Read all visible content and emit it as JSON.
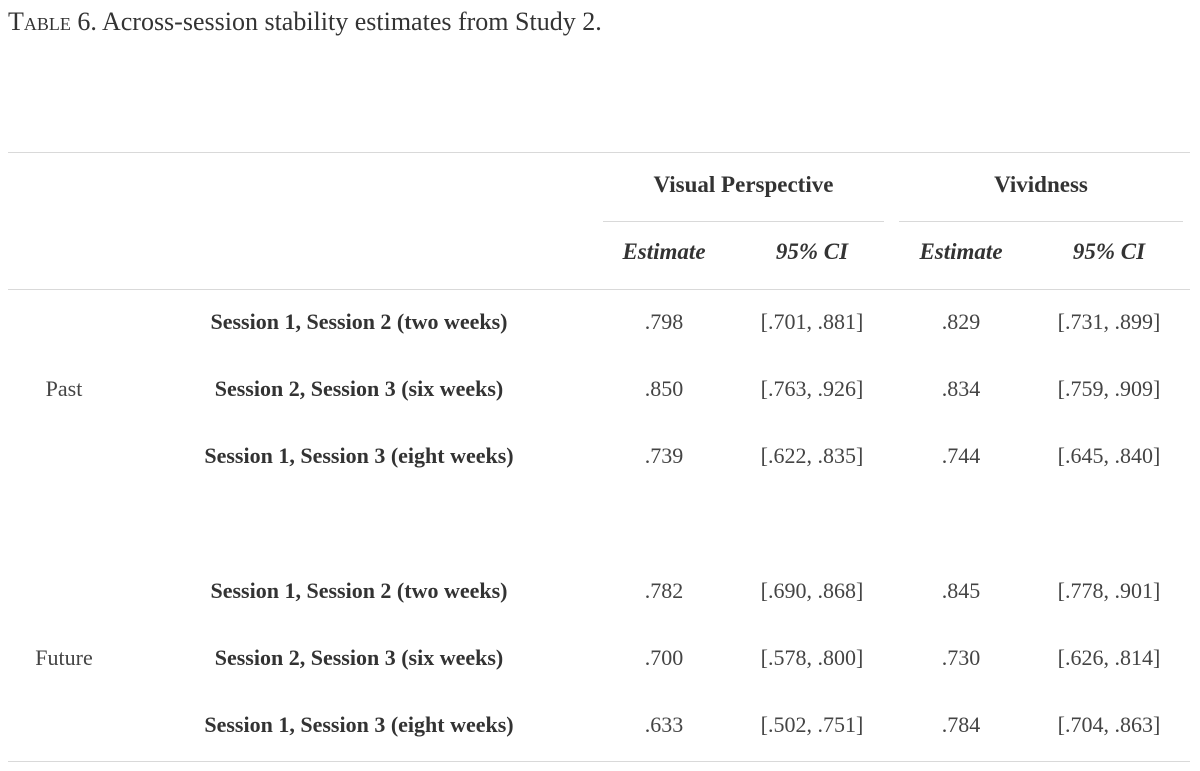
{
  "caption": {
    "label": "Table 6.",
    "text": "Across-session stability estimates from Study 2."
  },
  "table": {
    "column_groups": [
      "Visual Perspective",
      "Vividness"
    ],
    "subheaders": [
      "Estimate",
      "95% CI",
      "Estimate",
      "95% CI"
    ],
    "groups": [
      {
        "label": "Past",
        "rows": [
          {
            "label": "Session 1, Session 2 (two weeks)",
            "vp_estimate": ".798",
            "vp_ci": "[.701, .881]",
            "viv_estimate": ".829",
            "viv_ci": "[.731, .899]"
          },
          {
            "label": "Session 2, Session 3 (six weeks)",
            "vp_estimate": ".850",
            "vp_ci": "[.763, .926]",
            "viv_estimate": ".834",
            "viv_ci": "[.759, .909]"
          },
          {
            "label": "Session 1, Session 3 (eight weeks)",
            "vp_estimate": ".739",
            "vp_ci": "[.622, .835]",
            "viv_estimate": ".744",
            "viv_ci": "[.645, .840]"
          }
        ]
      },
      {
        "label": "Future",
        "rows": [
          {
            "label": "Session 1, Session 2 (two weeks)",
            "vp_estimate": ".782",
            "vp_ci": "[.690, .868]",
            "viv_estimate": ".845",
            "viv_ci": "[.778, .901]"
          },
          {
            "label": "Session 2, Session 3 (six weeks)",
            "vp_estimate": ".700",
            "vp_ci": "[.578, .800]",
            "viv_estimate": ".730",
            "viv_ci": "[.626, .814]"
          },
          {
            "label": "Session 1, Session 3 (eight weeks)",
            "vp_estimate": ".633",
            "vp_ci": "[.502, .751]",
            "viv_estimate": ".784",
            "viv_ci": "[.704, .863]"
          }
        ]
      }
    ]
  }
}
